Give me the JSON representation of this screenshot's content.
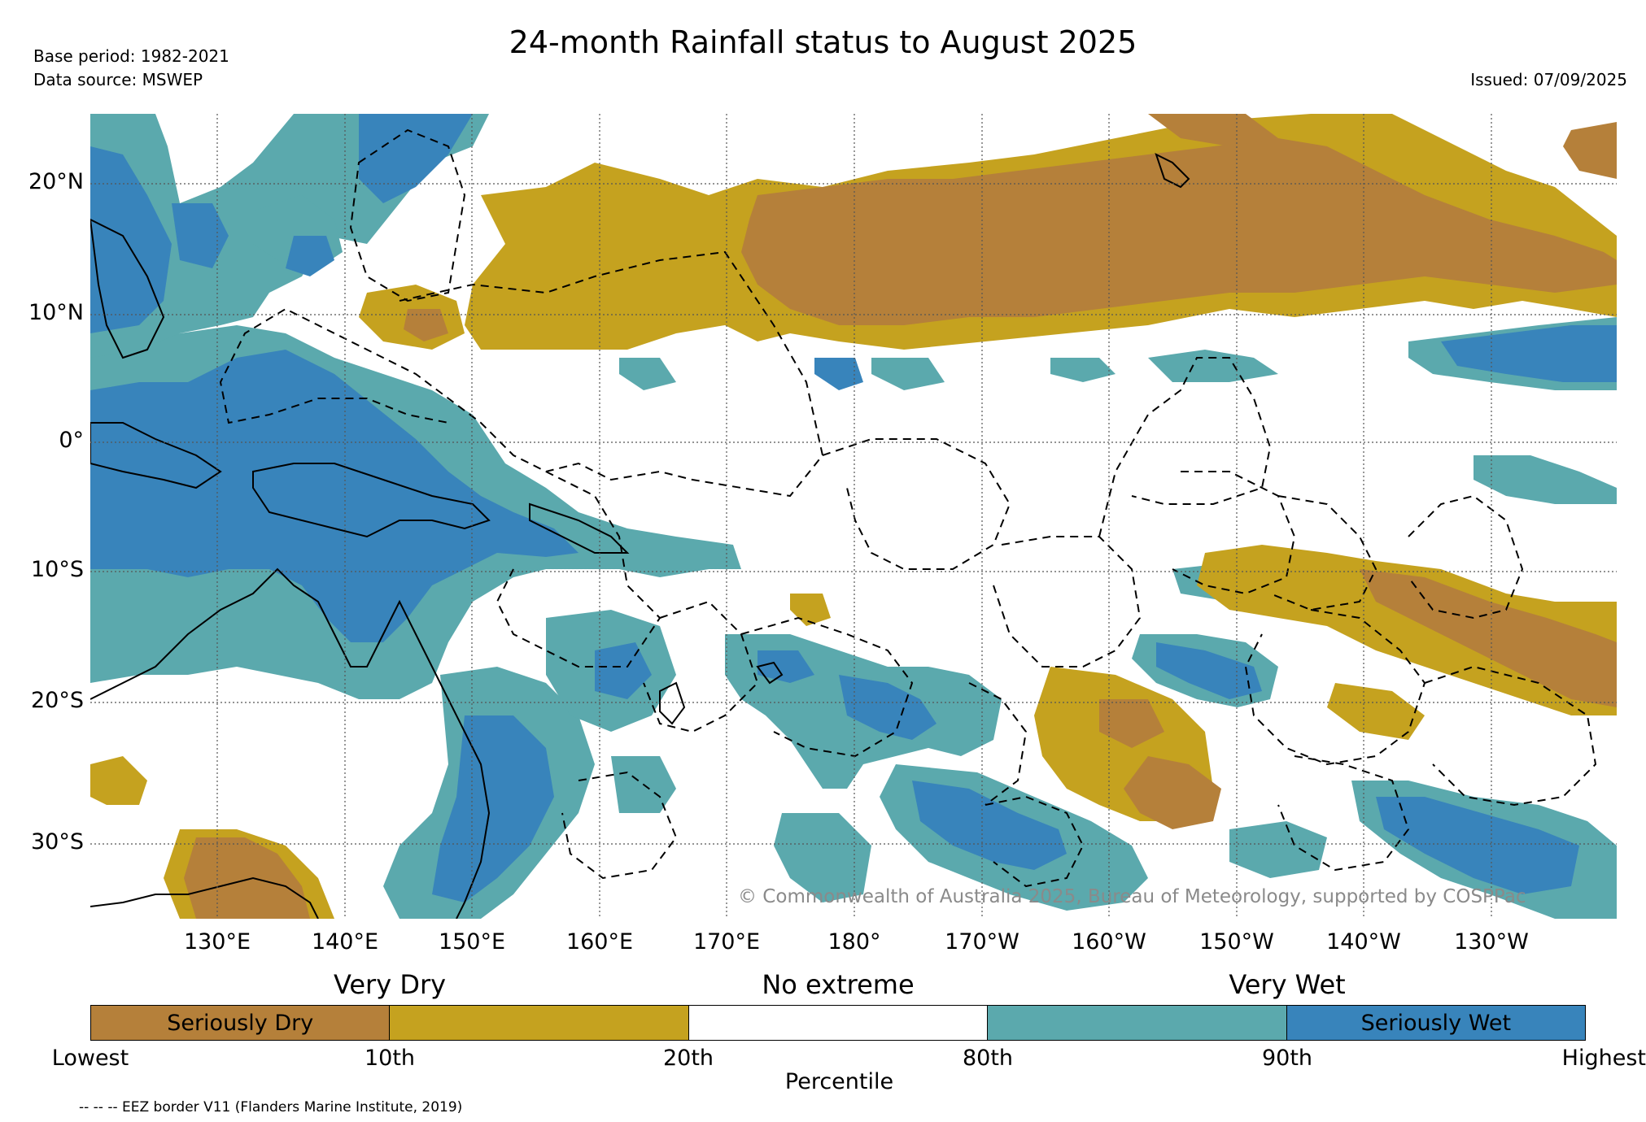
{
  "title": "24-month Rainfall status to August 2025",
  "base_period": "Base period: 1982-2021",
  "data_source": "Data source: MSWEP",
  "issued": "Issued: 07/09/2025",
  "copyright": "© Commonwealth of Australia 2025, Bureau of Meteorology, supported by COSPPac",
  "footnote": "-- -- -- EEZ border V11 (Flanders Marine Institute, 2019)",
  "map": {
    "lat_labels": [
      "20°N",
      "10°N",
      "0°",
      "10°S",
      "20°S",
      "30°S"
    ],
    "lon_labels": [
      "130°E",
      "140°E",
      "150°E",
      "160°E",
      "170°E",
      "180°",
      "170°W",
      "160°W",
      "150°W",
      "140°W",
      "130°W"
    ]
  },
  "colors": {
    "seriously_dry": "#b5803a",
    "very_dry": "#c5a21f",
    "no_extreme": "#ffffff",
    "very_wet": "#5ba9ad",
    "seriously_wet": "#3884bb",
    "gridline": "#555555",
    "coast": "#000000"
  },
  "legend": {
    "categories": [
      "Very Dry",
      "No extreme",
      "Very Wet"
    ],
    "cells": [
      {
        "label": "Seriously Dry",
        "color": "#b5803a"
      },
      {
        "label": "",
        "color": "#c5a21f"
      },
      {
        "label": "",
        "color": "#ffffff"
      },
      {
        "label": "",
        "color": "#5ba9ad"
      },
      {
        "label": "Seriously Wet",
        "color": "#3884bb"
      }
    ],
    "ticks": [
      "Lowest",
      "10th",
      "20th",
      "80th",
      "90th",
      "Highest"
    ],
    "axis_label": "Percentile"
  }
}
